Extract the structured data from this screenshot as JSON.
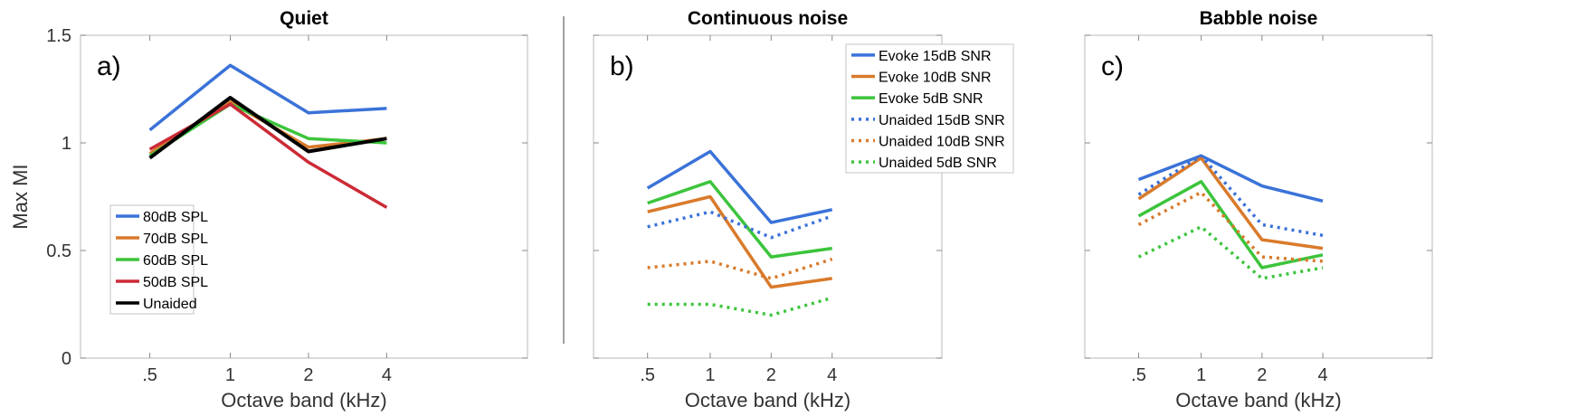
{
  "figure": {
    "divider_color": "#a0a0a0"
  },
  "colors": {
    "blue": "#3a72d8",
    "orange": "#d97a2b",
    "green": "#3cc43c",
    "red": "#cc2a36",
    "black": "#000000"
  },
  "chart_data": [
    {
      "type": "line",
      "title": "Quiet",
      "panel_label": "a)",
      "xlabel": "Octave band (kHz)",
      "ylabel": "Max MI",
      "categories": [
        ".5",
        "1",
        "2",
        "4"
      ],
      "ylim": [
        0,
        1.5
      ],
      "yticks": [
        "0",
        "0.5",
        "1",
        "1.5"
      ],
      "grid": false,
      "legend_position": "middle-left",
      "series": [
        {
          "name": "80dB SPL",
          "color": "#3a72d8",
          "style": "solid",
          "values": [
            1.06,
            1.36,
            1.14,
            1.16
          ]
        },
        {
          "name": "70dB SPL",
          "color": "#d97a2b",
          "style": "solid",
          "values": [
            0.95,
            1.19,
            0.98,
            1.02
          ]
        },
        {
          "name": "60dB SPL",
          "color": "#3cc43c",
          "style": "solid",
          "values": [
            0.94,
            1.18,
            1.02,
            1.0
          ]
        },
        {
          "name": "50dB SPL",
          "color": "#cc2a36",
          "style": "solid",
          "values": [
            0.97,
            1.18,
            0.91,
            0.7
          ]
        },
        {
          "name": "Unaided",
          "color": "#000000",
          "style": "solid",
          "values": [
            0.93,
            1.21,
            0.96,
            1.02
          ]
        }
      ]
    },
    {
      "type": "line",
      "title": "Continuous noise",
      "panel_label": "b)",
      "xlabel": "Octave band (kHz)",
      "ylabel": "",
      "categories": [
        ".5",
        "1",
        "2",
        "4"
      ],
      "ylim": [
        0,
        1.5
      ],
      "yticks": [],
      "grid": false,
      "legend_position": "top-right",
      "series": [
        {
          "name": "Evoke 15dB SNR",
          "color": "#3a72d8",
          "style": "solid",
          "values": [
            0.79,
            0.96,
            0.63,
            0.69
          ]
        },
        {
          "name": "Evoke 10dB SNR",
          "color": "#d97a2b",
          "style": "solid",
          "values": [
            0.68,
            0.75,
            0.33,
            0.37
          ]
        },
        {
          "name": "Evoke 5dB SNR",
          "color": "#3cc43c",
          "style": "solid",
          "values": [
            0.72,
            0.82,
            0.47,
            0.51
          ]
        },
        {
          "name": "Unaided 15dB SNR",
          "color": "#3a72d8",
          "style": "dotted",
          "values": [
            0.61,
            0.68,
            0.56,
            0.66
          ]
        },
        {
          "name": "Unaided 10dB SNR",
          "color": "#d97a2b",
          "style": "dotted",
          "values": [
            0.42,
            0.45,
            0.37,
            0.46
          ]
        },
        {
          "name": "Unaided 5dB SNR",
          "color": "#3cc43c",
          "style": "dotted",
          "values": [
            0.25,
            0.25,
            0.2,
            0.28
          ]
        }
      ]
    },
    {
      "type": "line",
      "title": "Babble noise",
      "panel_label": "c)",
      "xlabel": "Octave band (kHz)",
      "ylabel": "",
      "categories": [
        ".5",
        "1",
        "2",
        "4"
      ],
      "ylim": [
        0,
        1.5
      ],
      "yticks": [],
      "grid": false,
      "legend_position": "none",
      "series": [
        {
          "name": "Evoke 15dB SNR",
          "color": "#3a72d8",
          "style": "solid",
          "values": [
            0.83,
            0.94,
            0.8,
            0.73
          ]
        },
        {
          "name": "Evoke 10dB SNR",
          "color": "#d97a2b",
          "style": "solid",
          "values": [
            0.74,
            0.93,
            0.55,
            0.51
          ]
        },
        {
          "name": "Evoke 5dB SNR",
          "color": "#3cc43c",
          "style": "solid",
          "values": [
            0.66,
            0.82,
            0.42,
            0.48
          ]
        },
        {
          "name": "Unaided 15dB SNR",
          "color": "#3a72d8",
          "style": "dotted",
          "values": [
            0.76,
            0.94,
            0.62,
            0.57
          ]
        },
        {
          "name": "Unaided 10dB SNR",
          "color": "#d97a2b",
          "style": "dotted",
          "values": [
            0.62,
            0.77,
            0.47,
            0.45
          ]
        },
        {
          "name": "Unaided 5dB SNR",
          "color": "#3cc43c",
          "style": "dotted",
          "values": [
            0.47,
            0.61,
            0.37,
            0.42
          ]
        }
      ]
    }
  ]
}
